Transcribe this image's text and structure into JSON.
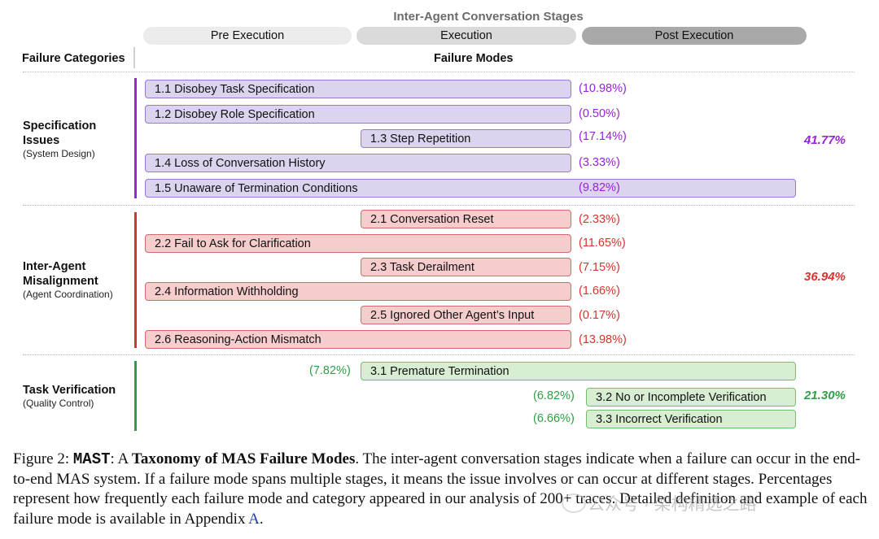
{
  "header": {
    "stages_title": "Inter-Agent Conversation Stages",
    "stages": [
      "Pre Execution",
      "Execution",
      "Post Execution"
    ],
    "stage_colors": [
      "#ececec",
      "#dadada",
      "#a9a9a9"
    ],
    "col_categories": "Failure Categories",
    "col_modes": "Failure Modes"
  },
  "categories": [
    {
      "title_line1": "Specification",
      "title_line2": "Issues",
      "subtitle": "(System Design)",
      "total": "41.77%",
      "color": "#9624d9",
      "modes": [
        {
          "label": "1.1 Disobey Task Specification",
          "pct": "(10.98%)"
        },
        {
          "label": "1.2 Disobey Role Specification",
          "pct": "(0.50%)"
        },
        {
          "label": "1.3 Step Repetition",
          "pct": "(17.14%)"
        },
        {
          "label": "1.4 Loss of Conversation History",
          "pct": "(3.33%)"
        },
        {
          "label": "1.5 Unaware of Termination Conditions",
          "pct": "(9.82%)"
        }
      ]
    },
    {
      "title_line1": "Inter-Agent",
      "title_line2": "Misalignment",
      "subtitle": "(Agent Coordination)",
      "total": "36.94%",
      "color": "#d6342c",
      "modes": [
        {
          "label": "2.1 Conversation Reset",
          "pct": "(2.33%)"
        },
        {
          "label": "2.2 Fail to Ask for Clarification",
          "pct": "(11.65%)"
        },
        {
          "label": "2.3 Task Derailment",
          "pct": "(7.15%)"
        },
        {
          "label": "2.4 Information Withholding",
          "pct": "(1.66%)"
        },
        {
          "label": "2.5 Ignored Other Agent’s Input",
          "pct": "(0.17%)"
        },
        {
          "label": "2.6 Reasoning-Action Mismatch",
          "pct": "(13.98%)"
        }
      ]
    },
    {
      "title_line1": "Task Verification",
      "subtitle": "(Quality Control)",
      "total": "21.30%",
      "color": "#2f9e45",
      "modes": [
        {
          "label": "3.1  Premature Termination",
          "pct": "(7.82%)"
        },
        {
          "label": "3.2 No or Incomplete Verification",
          "pct": "(6.82%)"
        },
        {
          "label": "3.3 Incorrect Verification",
          "pct": "(6.66%)"
        }
      ]
    }
  ],
  "caption": {
    "figure_label": "Figure 2: ",
    "mast": "MAST",
    "colon_a": ": A ",
    "bold_title": "Taxonomy of MAS Failure Modes",
    "body": ". The inter-agent conversation stages indicate when a failure can occur in the end-to-end MAS system. If a failure mode spans multiple stages, it means the issue involves or can occur at different stages. Percentages represent how frequently each failure mode and category appeared in our analysis of 200+ traces. Detailed definition and example of each failure mode is available in Appendix ",
    "appendix_link": "A",
    "end": "."
  },
  "watermark": "公众号 · 架构精选之路"
}
